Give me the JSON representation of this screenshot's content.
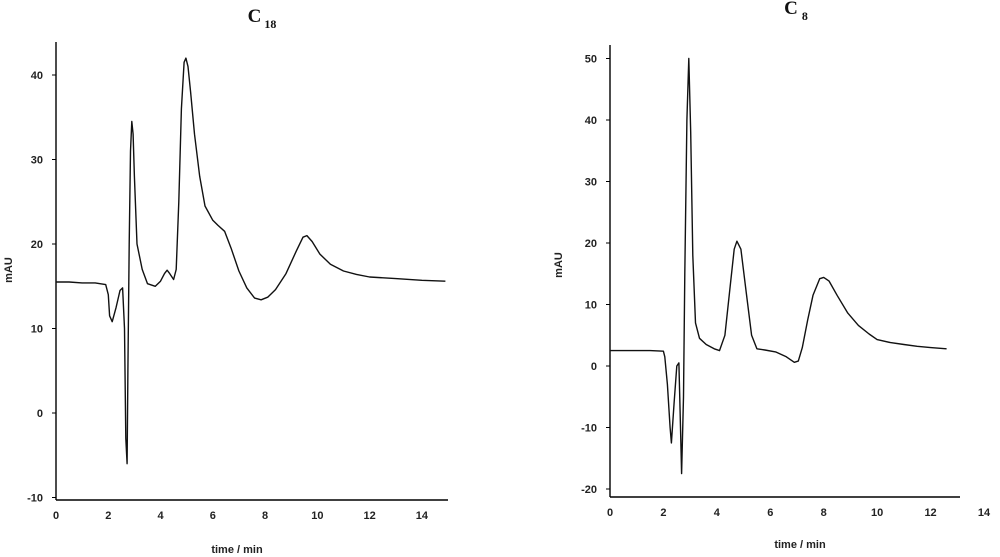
{
  "chart_data": [
    {
      "type": "line",
      "title": "C",
      "title_sub": "18",
      "xlabel": "time / min",
      "ylabel": "mAU",
      "xlim": [
        0,
        15
      ],
      "ylim": [
        -10,
        44
      ],
      "x_ticks": [
        0,
        2,
        4,
        6,
        8,
        10,
        12,
        14
      ],
      "y_ticks": [
        -10,
        0,
        10,
        20,
        30,
        40
      ],
      "series": [
        {
          "x": [
            0,
            0.5,
            1.0,
            1.5,
            1.9,
            2.0,
            2.05,
            2.15,
            2.3,
            2.45,
            2.55,
            2.62,
            2.67,
            2.72,
            2.75,
            2.8,
            2.85,
            2.9,
            2.95,
            3.0,
            3.1,
            3.3,
            3.5,
            3.8,
            4.0,
            4.15,
            4.25,
            4.35,
            4.5,
            4.6,
            4.7,
            4.8,
            4.9,
            4.97,
            5.05,
            5.15,
            5.3,
            5.5,
            5.7,
            6.0,
            6.2,
            6.45,
            6.7,
            7.0,
            7.3,
            7.6,
            7.85,
            8.1,
            8.4,
            8.8,
            9.2,
            9.45,
            9.6,
            9.8,
            10.1,
            10.5,
            11.0,
            11.5,
            12.0,
            13.0,
            14.0,
            14.9
          ],
          "y": [
            15.5,
            15.5,
            15.4,
            15.4,
            15.2,
            14.0,
            11.5,
            10.8,
            12.5,
            14.5,
            14.8,
            10.0,
            -3.0,
            -6.0,
            5.0,
            20.0,
            31.0,
            34.5,
            33.0,
            28.0,
            20.0,
            17.0,
            15.3,
            15.0,
            15.6,
            16.5,
            16.9,
            16.5,
            15.8,
            17.0,
            25.0,
            36.0,
            41.5,
            42.0,
            41.0,
            38.0,
            33.0,
            28.0,
            24.5,
            22.8,
            22.2,
            21.5,
            19.5,
            16.8,
            14.8,
            13.6,
            13.4,
            13.7,
            14.6,
            16.5,
            19.2,
            20.8,
            21.0,
            20.3,
            18.8,
            17.6,
            16.8,
            16.4,
            16.1,
            15.9,
            15.7,
            15.6
          ]
        }
      ]
    },
    {
      "type": "line",
      "title": "C",
      "title_sub": "8",
      "xlabel": "time / min",
      "ylabel": "mAU",
      "xlim": [
        0,
        14
      ],
      "ylim": [
        -20,
        52
      ],
      "x_ticks": [
        0,
        2,
        4,
        6,
        8,
        10,
        12,
        14
      ],
      "y_ticks": [
        -20,
        -10,
        0,
        10,
        20,
        30,
        40,
        50
      ],
      "series": [
        {
          "x": [
            0,
            0.5,
            1.0,
            1.5,
            2.0,
            2.05,
            2.15,
            2.25,
            2.3,
            2.4,
            2.5,
            2.58,
            2.64,
            2.68,
            2.75,
            2.8,
            2.88,
            2.95,
            3.02,
            3.1,
            3.2,
            3.35,
            3.6,
            3.9,
            4.1,
            4.3,
            4.5,
            4.65,
            4.75,
            4.9,
            5.1,
            5.3,
            5.5,
            5.8,
            6.2,
            6.6,
            6.9,
            7.05,
            7.2,
            7.4,
            7.6,
            7.85,
            8.0,
            8.2,
            8.5,
            8.9,
            9.3,
            9.7,
            10.0,
            10.5,
            11.0,
            11.5,
            12.0,
            12.6
          ],
          "y": [
            2.5,
            2.5,
            2.5,
            2.5,
            2.4,
            1.5,
            -3.0,
            -10.0,
            -12.5,
            -6.0,
            0.0,
            0.5,
            -10.0,
            -17.5,
            -5.0,
            15.0,
            40.0,
            50.0,
            38.0,
            18.0,
            7.0,
            4.5,
            3.5,
            2.8,
            2.5,
            5.0,
            13.0,
            19.0,
            20.3,
            19.0,
            12.0,
            5.0,
            2.8,
            2.6,
            2.3,
            1.5,
            0.6,
            0.8,
            3.0,
            7.5,
            11.5,
            14.2,
            14.4,
            13.8,
            11.5,
            8.6,
            6.6,
            5.2,
            4.3,
            3.8,
            3.5,
            3.2,
            3.0,
            2.8
          ]
        }
      ]
    }
  ]
}
